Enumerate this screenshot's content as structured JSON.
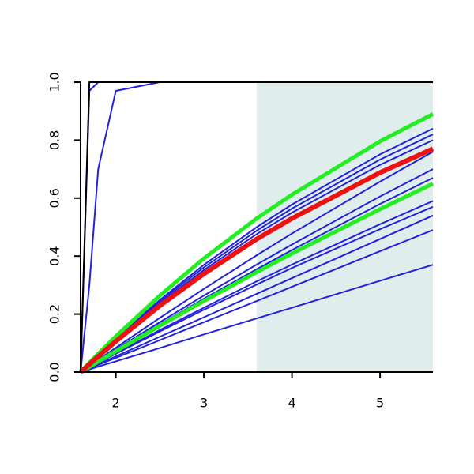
{
  "chart_data": {
    "type": "line",
    "x": [
      1.6,
      1.7,
      1.8,
      2,
      2.5,
      3,
      3.6,
      4,
      5,
      5.6
    ],
    "series": [
      {
        "color": "#2222dd",
        "linewidth": 2,
        "values": [
          0,
          0.97,
          1,
          1,
          1,
          1,
          1,
          1,
          1,
          1
        ]
      },
      {
        "color": "#2222dd",
        "linewidth": 2,
        "values": [
          0,
          0.3,
          0.7,
          0.97,
          1,
          1,
          1,
          1,
          1,
          1
        ]
      },
      {
        "color": "#2222dd",
        "linewidth": 2,
        "values": [
          0,
          0.03,
          0.059,
          0.116,
          0.249,
          0.37,
          0.5,
          0.578,
          0.751,
          0.84
        ]
      },
      {
        "color": "#2222dd",
        "linewidth": 2,
        "values": [
          0,
          0.029,
          0.058,
          0.113,
          0.244,
          0.361,
          0.488,
          0.564,
          0.733,
          0.82
        ]
      },
      {
        "color": "#2222dd",
        "linewidth": 2,
        "values": [
          0,
          0.028,
          0.056,
          0.11,
          0.238,
          0.352,
          0.476,
          0.55,
          0.715,
          0.8
        ]
      },
      {
        "color": "#2222dd",
        "linewidth": 2,
        "values": [
          0,
          0.021,
          0.042,
          0.084,
          0.187,
          0.287,
          0.403,
          0.478,
          0.657,
          0.76
        ]
      },
      {
        "color": "#2222dd",
        "linewidth": 2,
        "values": [
          0,
          0.02,
          0.039,
          0.078,
          0.172,
          0.264,
          0.371,
          0.44,
          0.606,
          0.7
        ]
      },
      {
        "color": "#2222dd",
        "linewidth": 2,
        "values": [
          0,
          0.019,
          0.037,
          0.074,
          0.165,
          0.253,
          0.355,
          0.421,
          0.58,
          0.67
        ]
      },
      {
        "color": "#2222dd",
        "linewidth": 2,
        "values": [
          0,
          0.016,
          0.033,
          0.065,
          0.145,
          0.222,
          0.313,
          0.371,
          0.51,
          0.59
        ]
      },
      {
        "color": "#2222dd",
        "linewidth": 2,
        "values": [
          0,
          0.016,
          0.032,
          0.063,
          0.14,
          0.215,
          0.302,
          0.359,
          0.493,
          0.57
        ]
      },
      {
        "color": "#2222dd",
        "linewidth": 2,
        "values": [
          0,
          0.0135,
          0.027,
          0.054,
          0.122,
          0.189,
          0.27,
          0.324,
          0.459,
          0.54
        ]
      },
      {
        "color": "#2222dd",
        "linewidth": 2,
        "values": [
          0,
          0.012,
          0.025,
          0.049,
          0.11,
          0.172,
          0.245,
          0.294,
          0.417,
          0.49
        ]
      },
      {
        "color": "#2222dd",
        "linewidth": 2,
        "values": [
          0,
          0.009,
          0.019,
          0.037,
          0.083,
          0.13,
          0.185,
          0.222,
          0.315,
          0.37
        ]
      },
      {
        "color": "#000000",
        "linewidth": 2,
        "values": [
          0,
          1,
          1,
          1,
          1,
          1,
          1,
          1,
          1,
          1
        ]
      },
      {
        "color": "#22ee22",
        "linewidth": 5,
        "values": [
          0,
          0.032,
          0.063,
          0.123,
          0.264,
          0.392,
          0.53,
          0.612,
          0.796,
          0.89
        ]
      },
      {
        "color": "#22ee22",
        "linewidth": 5,
        "values": [
          0,
          0.018,
          0.036,
          0.072,
          0.16,
          0.245,
          0.345,
          0.409,
          0.562,
          0.65
        ]
      },
      {
        "color": "#ee1111",
        "linewidth": 6,
        "values": [
          0,
          0.027,
          0.054,
          0.106,
          0.229,
          0.339,
          0.459,
          0.53,
          0.688,
          0.77
        ]
      }
    ],
    "shaded_region": {
      "x": [
        3.6,
        5.6
      ],
      "color": "#e0eded"
    },
    "xlim": [
      1.6,
      5.6
    ],
    "xticks": [
      2,
      3,
      4,
      5
    ],
    "ylim": [
      0,
      1
    ],
    "yticks": [
      {
        "value": 0,
        "label": "0.0"
      },
      {
        "value": 0.2,
        "label": "0.2"
      },
      {
        "value": 0.4,
        "label": "0.4"
      },
      {
        "value": 0.6,
        "label": "0.6"
      },
      {
        "value": 0.8,
        "label": "0.8"
      },
      {
        "value": 1,
        "label": "1.0"
      }
    ]
  }
}
